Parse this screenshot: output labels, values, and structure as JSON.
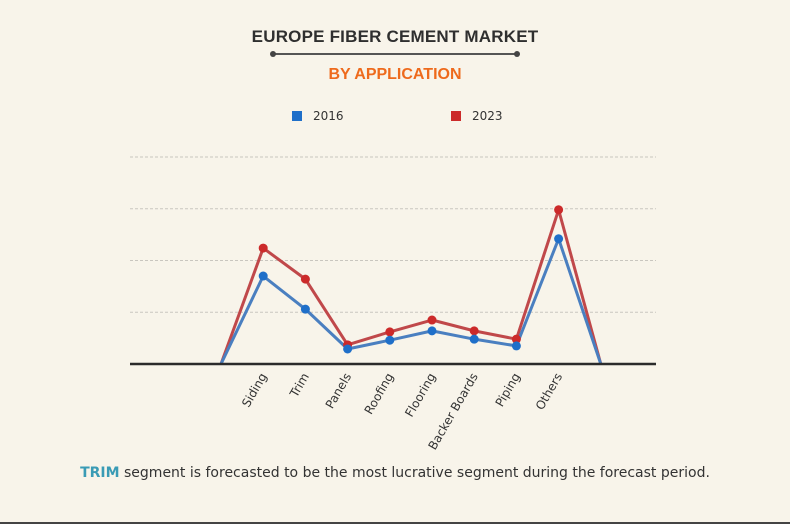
{
  "chart_data": {
    "type": "line",
    "title": "EUROPE FIBER CEMENT MARKET",
    "subtitle": "BY APPLICATION",
    "xlabel": "",
    "ylabel": "",
    "categories": [
      "Siding",
      "Trim",
      "Panels",
      "Roofing",
      "Flooring",
      "Backer Boards",
      "Piping",
      "Others"
    ],
    "series": [
      {
        "name": "2016",
        "color": "#1f6fc9",
        "line_color": "#4a7fc0",
        "values": [
          1.7,
          1.06,
          0.29,
          0.46,
          0.64,
          0.48,
          0.35,
          2.42
        ]
      },
      {
        "name": "2023",
        "color": "#cc2a2a",
        "line_color": "#c0484a",
        "values": [
          2.24,
          1.64,
          0.37,
          0.62,
          0.85,
          0.64,
          0.48,
          2.98
        ]
      }
    ],
    "ylim": [
      0,
      4
    ],
    "y_units": "relative (gridline units, no axis labels shown)",
    "grid": true,
    "legend_position": "top-center"
  },
  "caption": {
    "highlight": "TRIM",
    "text": " segment is forecasted to be the most lucrative segment during the forecast period."
  },
  "colors": {
    "background": "#f8f4ea",
    "title": "#2f2f2f",
    "subtitle": "#ee6a1c",
    "highlight": "#3a9bb5"
  }
}
